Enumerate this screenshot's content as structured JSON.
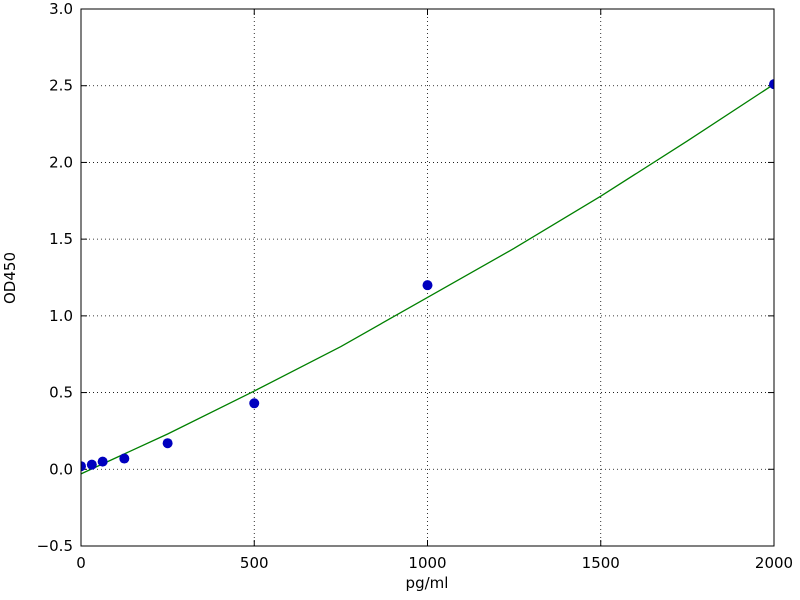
{
  "chart_data": {
    "type": "scatter",
    "xlabel": "pg/ml",
    "ylabel": "OD450",
    "xlim": [
      0,
      2000
    ],
    "ylim": [
      -0.5,
      3.0
    ],
    "xticks": [
      0,
      500,
      1000,
      1500,
      2000
    ],
    "yticks": [
      {
        "value": -0.5,
        "label": "−0.5"
      },
      {
        "value": 0,
        "label": "0.0"
      },
      {
        "value": 0.5,
        "label": "0.5"
      },
      {
        "value": 1,
        "label": "1.0"
      },
      {
        "value": 1.5,
        "label": "1.5"
      },
      {
        "value": 2,
        "label": "2.0"
      },
      {
        "value": 2.5,
        "label": "2.5"
      },
      {
        "value": 3,
        "label": "3.0"
      }
    ],
    "grid": true,
    "series": [
      {
        "type": "line",
        "color": "#008000",
        "x": [
          0,
          250,
          500,
          750,
          1000,
          1250,
          1500,
          1750,
          2000
        ],
        "values": [
          -0.03,
          0.23,
          0.51,
          0.8,
          1.12,
          1.44,
          1.78,
          2.14,
          2.51
        ]
      },
      {
        "type": "scatter",
        "color": "#0000bf",
        "x": [
          0,
          31.25,
          62.5,
          125,
          250,
          500,
          1000,
          2000
        ],
        "values": [
          0.02,
          0.03,
          0.05,
          0.07,
          0.17,
          0.43,
          1.2,
          2.51
        ]
      }
    ]
  }
}
